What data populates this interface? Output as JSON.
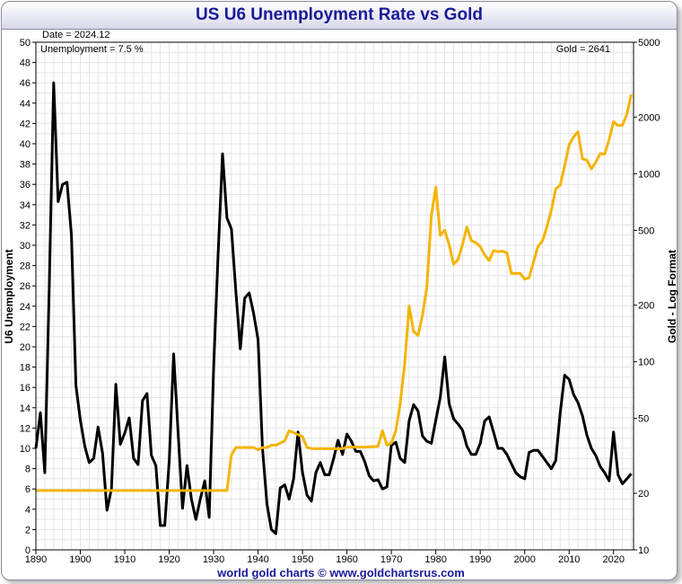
{
  "chart_data": {
    "type": "line",
    "title": "US U6 Unemployment Rate vs Gold",
    "ylabel_left": "U6 Unemployment",
    "ylabel_right": "Gold - Log Format",
    "annotations": {
      "date": "Date = 2024.12",
      "unemployment": "Unemployment = 7.5 %",
      "gold": "Gold = 2641"
    },
    "xlim": [
      1890,
      2024.5
    ],
    "x_ticks": [
      "1890",
      "1900",
      "1910",
      "1920",
      "1930",
      "1940",
      "1950",
      "1960",
      "1970",
      "1980",
      "1990",
      "2000",
      "2010",
      "2020"
    ],
    "y_left_lim": [
      0,
      50
    ],
    "y_left_ticks": [
      "0",
      "2",
      "4",
      "6",
      "8",
      "10",
      "12",
      "14",
      "16",
      "18",
      "20",
      "22",
      "24",
      "26",
      "28",
      "30",
      "32",
      "34",
      "36",
      "38",
      "40",
      "42",
      "44",
      "46",
      "48",
      "50"
    ],
    "y_right_scale": "log",
    "y_right_lim": [
      10,
      5000
    ],
    "y_right_ticks": [
      "10",
      "20",
      "50",
      "100",
      "200",
      "500",
      "1000",
      "2000",
      "5000"
    ],
    "grid": true,
    "series": [
      {
        "name": "U6 Unemployment",
        "axis": "left",
        "color": "#000000",
        "points": [
          [
            1890,
            10
          ],
          [
            1891,
            13.5
          ],
          [
            1892,
            7.6
          ],
          [
            1893,
            26
          ],
          [
            1894,
            46
          ],
          [
            1895,
            34.3
          ],
          [
            1896,
            36
          ],
          [
            1897,
            36.2
          ],
          [
            1898,
            31
          ],
          [
            1899,
            16.2
          ],
          [
            1900,
            12.8
          ],
          [
            1901,
            10.2
          ],
          [
            1902,
            8.6
          ],
          [
            1903,
            9
          ],
          [
            1904,
            12.1
          ],
          [
            1905,
            9.5
          ],
          [
            1906,
            3.9
          ],
          [
            1907,
            6
          ],
          [
            1908,
            16.3
          ],
          [
            1909,
            10.4
          ],
          [
            1910,
            11.5
          ],
          [
            1911,
            13
          ],
          [
            1912,
            9
          ],
          [
            1913,
            8.4
          ],
          [
            1914,
            14.7
          ],
          [
            1915,
            15.4
          ],
          [
            1916,
            9.3
          ],
          [
            1917,
            8.3
          ],
          [
            1918,
            2.4
          ],
          [
            1919,
            2.4
          ],
          [
            1920,
            8.8
          ],
          [
            1921,
            19.3
          ],
          [
            1922,
            11.5
          ],
          [
            1923,
            4.1
          ],
          [
            1924,
            8.3
          ],
          [
            1925,
            5
          ],
          [
            1926,
            3
          ],
          [
            1927,
            5
          ],
          [
            1928,
            6.8
          ],
          [
            1929,
            3.2
          ],
          [
            1930,
            18
          ],
          [
            1931,
            29
          ],
          [
            1932,
            39
          ],
          [
            1933,
            32.7
          ],
          [
            1934,
            31.6
          ],
          [
            1935,
            25.5
          ],
          [
            1936,
            19.8
          ],
          [
            1937,
            24.8
          ],
          [
            1938,
            25.3
          ],
          [
            1939,
            23.3
          ],
          [
            1940,
            20.7
          ],
          [
            1941,
            10
          ],
          [
            1942,
            4.5
          ],
          [
            1943,
            2
          ],
          [
            1944,
            1.6
          ],
          [
            1945,
            6.1
          ],
          [
            1946,
            6.4
          ],
          [
            1947,
            5
          ],
          [
            1948,
            7
          ],
          [
            1949,
            11.6
          ],
          [
            1950,
            7.6
          ],
          [
            1951,
            5.4
          ],
          [
            1952,
            4.8
          ],
          [
            1953,
            7.6
          ],
          [
            1954,
            8.6
          ],
          [
            1955,
            7.4
          ],
          [
            1956,
            7.4
          ],
          [
            1957,
            9
          ],
          [
            1958,
            10.8
          ],
          [
            1959,
            9.4
          ],
          [
            1960,
            11.4
          ],
          [
            1961,
            10.7
          ],
          [
            1962,
            9.7
          ],
          [
            1963,
            9.7
          ],
          [
            1964,
            8.7
          ],
          [
            1965,
            7.3
          ],
          [
            1966,
            6.8
          ],
          [
            1967,
            6.9
          ],
          [
            1968,
            6
          ],
          [
            1969,
            6.2
          ],
          [
            1970,
            10.3
          ],
          [
            1971,
            10.6
          ],
          [
            1972,
            9
          ],
          [
            1973,
            8.6
          ],
          [
            1974,
            12.7
          ],
          [
            1975,
            14.3
          ],
          [
            1976,
            13.7
          ],
          [
            1977,
            11.2
          ],
          [
            1978,
            10.7
          ],
          [
            1979,
            10.5
          ],
          [
            1980,
            12.8
          ],
          [
            1981,
            15
          ],
          [
            1982,
            19
          ],
          [
            1983,
            14.4
          ],
          [
            1984,
            12.9
          ],
          [
            1985,
            12.4
          ],
          [
            1986,
            11.8
          ],
          [
            1987,
            10.2
          ],
          [
            1988,
            9.4
          ],
          [
            1989,
            9.4
          ],
          [
            1990,
            10.5
          ],
          [
            1991,
            12.7
          ],
          [
            1992,
            13.1
          ],
          [
            1993,
            11.6
          ],
          [
            1994,
            10
          ],
          [
            1995,
            10
          ],
          [
            1996,
            9.4
          ],
          [
            1997,
            8.5
          ],
          [
            1998,
            7.6
          ],
          [
            1999,
            7.2
          ],
          [
            2000,
            7
          ],
          [
            2001,
            9.6
          ],
          [
            2002,
            9.8
          ],
          [
            2003,
            9.8
          ],
          [
            2004,
            9.2
          ],
          [
            2005,
            8.6
          ],
          [
            2006,
            8
          ],
          [
            2007,
            8.8
          ],
          [
            2008,
            13.5
          ],
          [
            2009,
            17.2
          ],
          [
            2010,
            16.8
          ],
          [
            2011,
            15.3
          ],
          [
            2012,
            14.5
          ],
          [
            2013,
            13.2
          ],
          [
            2014,
            11.3
          ],
          [
            2015,
            10
          ],
          [
            2016,
            9.3
          ],
          [
            2017,
            8.2
          ],
          [
            2018,
            7.6
          ],
          [
            2019,
            6.8
          ],
          [
            2020,
            11.6
          ],
          [
            2021,
            7.4
          ],
          [
            2022,
            6.5
          ],
          [
            2023,
            7
          ],
          [
            2024,
            7.5
          ]
        ]
      },
      {
        "name": "Gold",
        "axis": "right",
        "color": "#f5b400",
        "points": [
          [
            1890,
            20.67
          ],
          [
            1933,
            20.67
          ],
          [
            1934,
            32
          ],
          [
            1935,
            35
          ],
          [
            1939,
            35
          ],
          [
            1940,
            34
          ],
          [
            1941,
            35
          ],
          [
            1942,
            35
          ],
          [
            1943,
            36
          ],
          [
            1944,
            36
          ],
          [
            1945,
            37
          ],
          [
            1946,
            38
          ],
          [
            1947,
            43
          ],
          [
            1948,
            42
          ],
          [
            1949,
            41
          ],
          [
            1950,
            40
          ],
          [
            1951,
            35
          ],
          [
            1952,
            34.6
          ],
          [
            1953,
            34.5
          ],
          [
            1954,
            34.5
          ],
          [
            1955,
            34.5
          ],
          [
            1956,
            34.5
          ],
          [
            1957,
            34.5
          ],
          [
            1958,
            34.5
          ],
          [
            1959,
            34.5
          ],
          [
            1960,
            35.2
          ],
          [
            1961,
            35.2
          ],
          [
            1962,
            35.2
          ],
          [
            1963,
            35.2
          ],
          [
            1964,
            35.2
          ],
          [
            1965,
            35.3
          ],
          [
            1966,
            35.4
          ],
          [
            1967,
            35.5
          ],
          [
            1968,
            43
          ],
          [
            1969,
            36
          ],
          [
            1970,
            37
          ],
          [
            1971,
            43
          ],
          [
            1972,
            60
          ],
          [
            1973,
            98
          ],
          [
            1974,
            198
          ],
          [
            1975,
            145
          ],
          [
            1976,
            138
          ],
          [
            1977,
            177
          ],
          [
            1978,
            250
          ],
          [
            1979,
            600
          ],
          [
            1980,
            850
          ],
          [
            1981,
            470
          ],
          [
            1982,
            500
          ],
          [
            1983,
            420
          ],
          [
            1984,
            330
          ],
          [
            1985,
            350
          ],
          [
            1986,
            420
          ],
          [
            1987,
            520
          ],
          [
            1988,
            440
          ],
          [
            1989,
            430
          ],
          [
            1990,
            410
          ],
          [
            1991,
            370
          ],
          [
            1992,
            345
          ],
          [
            1993,
            390
          ],
          [
            1994,
            385
          ],
          [
            1995,
            387
          ],
          [
            1996,
            380
          ],
          [
            1997,
            295
          ],
          [
            1998,
            295
          ],
          [
            1999,
            295
          ],
          [
            2000,
            275
          ],
          [
            2001,
            280
          ],
          [
            2002,
            340
          ],
          [
            2003,
            410
          ],
          [
            2004,
            440
          ],
          [
            2005,
            520
          ],
          [
            2006,
            640
          ],
          [
            2007,
            830
          ],
          [
            2008,
            870
          ],
          [
            2009,
            1100
          ],
          [
            2010,
            1420
          ],
          [
            2011,
            1570
          ],
          [
            2012,
            1670
          ],
          [
            2013,
            1200
          ],
          [
            2014,
            1180
          ],
          [
            2015,
            1060
          ],
          [
            2016,
            1150
          ],
          [
            2017,
            1280
          ],
          [
            2018,
            1270
          ],
          [
            2019,
            1520
          ],
          [
            2020,
            1890
          ],
          [
            2021,
            1800
          ],
          [
            2022,
            1810
          ],
          [
            2023,
            2070
          ],
          [
            2024,
            2641
          ]
        ]
      }
    ]
  },
  "footer": "world gold charts © www.goldchartsrus.com"
}
